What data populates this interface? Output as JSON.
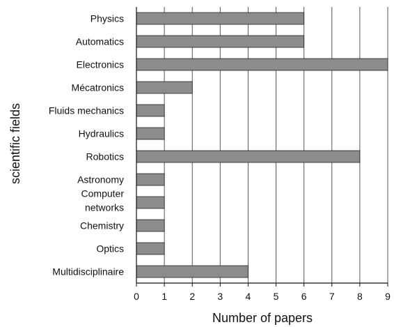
{
  "chart_data": {
    "type": "bar",
    "orientation": "horizontal",
    "categories": [
      "Physics",
      "Automatics",
      "Electronics",
      "Mécatronics",
      "Fluids mechanics",
      "Hydraulics",
      "Robotics",
      "Astronomy",
      "Computer\nnetworks",
      "Chemistry",
      "Optics",
      "Multidisciplinaire"
    ],
    "values": [
      6,
      6,
      9,
      2,
      1,
      1,
      8,
      1,
      1,
      1,
      1,
      4
    ],
    "xlabel": "Number of papers",
    "ylabel": "scientific fields",
    "xlim": [
      0,
      9
    ],
    "x_ticks": [
      0,
      1,
      2,
      3,
      4,
      5,
      6,
      7,
      8,
      9
    ],
    "grid": "vertical",
    "bar_color": "#8c8c8c",
    "bar_edge_color": "#222222"
  }
}
